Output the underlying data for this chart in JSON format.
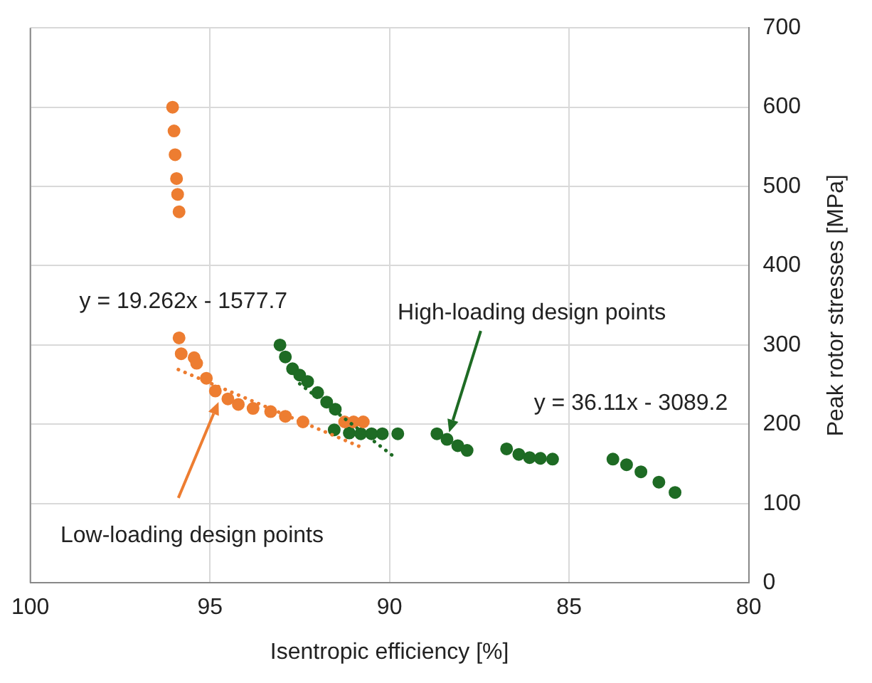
{
  "chart_data": {
    "type": "scatter",
    "xlabel": "Isentropic efficiency [%]",
    "ylabel": "Peak rotor stresses [MPa]",
    "xlim": [
      100,
      80
    ],
    "xticks": [
      100,
      95,
      90,
      85,
      80
    ],
    "ylim": [
      0,
      700
    ],
    "yticks": [
      0,
      100,
      200,
      300,
      400,
      500,
      600,
      700
    ],
    "grid": true,
    "marker": "circle",
    "series": [
      {
        "color": "#ed7d31",
        "x": [
          96.04,
          96.0,
          95.97,
          95.93,
          95.9,
          95.86,
          95.86,
          95.8,
          95.44,
          95.37,
          95.1,
          94.85,
          94.5,
          94.21,
          93.8,
          93.31,
          92.9,
          92.41,
          91.25,
          91.0,
          90.73
        ],
        "values": [
          600,
          570,
          540,
          510,
          490,
          468,
          309,
          289,
          284,
          277,
          258,
          242,
          232,
          225,
          220,
          216,
          210,
          203,
          203,
          203,
          203
        ]
      },
      {
        "color": "#1e6b24",
        "x": [
          93.05,
          92.9,
          92.7,
          92.5,
          92.28,
          92.0,
          91.75,
          91.51,
          91.54,
          91.12,
          90.8,
          90.5,
          90.2,
          89.77,
          88.68,
          88.4,
          88.1,
          87.84,
          86.74,
          86.4,
          86.1,
          85.8,
          85.46,
          83.78,
          83.4,
          83.0,
          82.5,
          82.05
        ],
        "values": [
          300,
          285,
          270,
          262,
          254,
          240,
          228,
          219,
          193,
          189,
          188,
          188,
          188,
          188,
          188,
          181,
          173,
          167,
          169,
          162,
          158,
          157,
          156,
          156,
          149,
          140,
          127,
          114
        ]
      },
      {
        "type": "line",
        "color": "#ed7d31",
        "line_style": "dotted",
        "marker": "none",
        "x": [
          95.88,
          90.73
        ],
        "values": [
          269,
          170
        ]
      },
      {
        "type": "line",
        "color": "#1e6b24",
        "line_style": "dotted",
        "marker": "none",
        "x": [
          92.5,
          89.9
        ],
        "values": [
          251,
          160
        ]
      }
    ],
    "annotations": [
      "y = 19.262x - 1577.7",
      "y = 36.11x - 3089.2",
      "Low-loading design points",
      "High-loading design points"
    ]
  }
}
